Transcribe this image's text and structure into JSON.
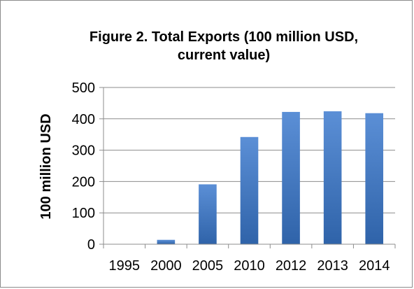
{
  "chart_data": {
    "type": "bar",
    "title_line1": "Figure 2. Total Exports (100 million USD,",
    "title_line2": "current value)",
    "ylabel": "100 million USD",
    "xlabel": "",
    "categories": [
      "1995",
      "2000",
      "2005",
      "2010",
      "2012",
      "2013",
      "2014"
    ],
    "values": [
      1,
      14,
      191,
      342,
      422,
      424,
      418
    ],
    "ylim": [
      0,
      500
    ],
    "yticks": [
      0,
      100,
      200,
      300,
      400,
      500
    ],
    "grid": true,
    "legend": "none",
    "colors": {
      "bar_light": "#5b8fd6",
      "bar_dark": "#2f63a9",
      "grid": "#8c8c8c",
      "axis": "#8c8c8c"
    }
  }
}
